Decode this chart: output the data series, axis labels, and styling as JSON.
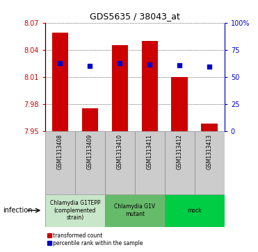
{
  "title": "GDS5635 / 38043_at",
  "samples": [
    "GSM1313408",
    "GSM1313409",
    "GSM1313410",
    "GSM1313411",
    "GSM1313412",
    "GSM1313413"
  ],
  "transformed_counts": [
    8.059,
    7.975,
    8.045,
    8.05,
    8.01,
    7.958
  ],
  "bar_bottom": 7.95,
  "percentile_values": [
    8.025,
    8.022,
    8.025,
    8.024,
    8.023,
    8.021
  ],
  "ylim_left": [
    7.95,
    8.07
  ],
  "ylim_right": [
    0,
    100
  ],
  "yticks_left": [
    7.95,
    7.98,
    8.01,
    8.04,
    8.07
  ],
  "yticks_right": [
    0,
    25,
    50,
    75,
    100
  ],
  "ytick_labels_left": [
    "7.95",
    "7.98",
    "8.01",
    "8.04",
    "8.07"
  ],
  "ytick_labels_right": [
    "0",
    "25",
    "50",
    "75",
    "100%"
  ],
  "bar_color": "#CC0000",
  "percentile_color": "#0000CC",
  "groups": [
    {
      "label": "Chlamydia G1TEPP\n(complemented\nstrain)",
      "start": 0,
      "end": 1,
      "color": "#c8e6c9"
    },
    {
      "label": "Chlamydia G1V\nmutant",
      "start": 2,
      "end": 3,
      "color": "#66bb6a"
    },
    {
      "label": "mock",
      "start": 4,
      "end": 5,
      "color": "#00cc44"
    }
  ],
  "factor_label": "infection",
  "legend_labels": [
    "transformed count",
    "percentile rank within the sample"
  ],
  "legend_colors": [
    "#CC0000",
    "#0000CC"
  ]
}
